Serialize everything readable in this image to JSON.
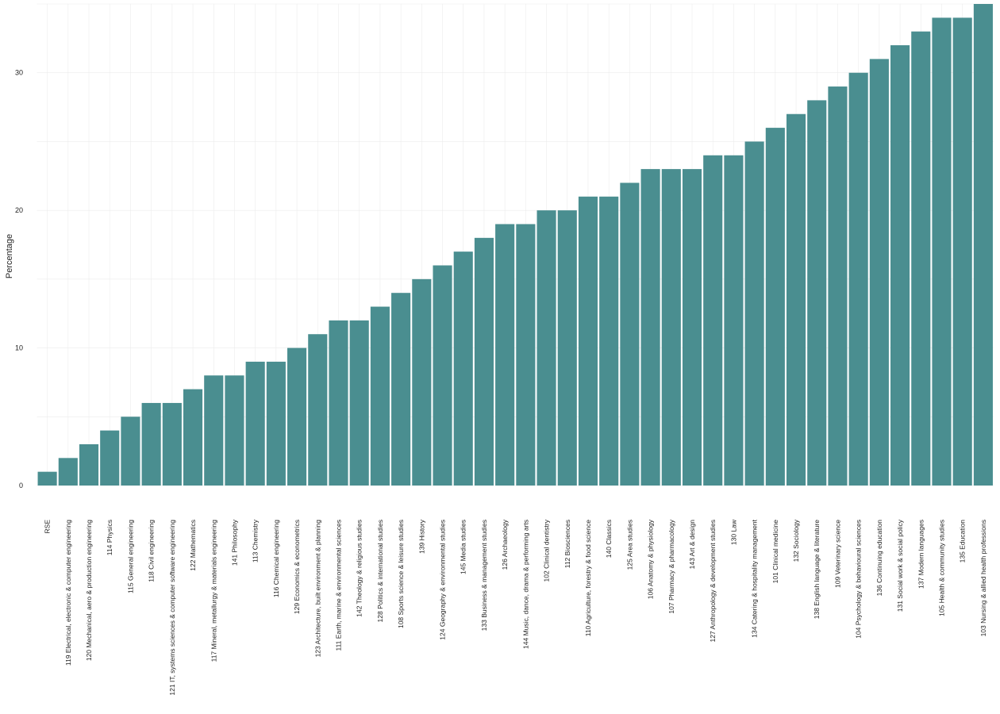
{
  "chart_data": {
    "type": "bar",
    "title": "",
    "xlabel": "",
    "ylabel": "Percentage",
    "ylim": [
      0,
      35
    ],
    "yticks": [
      0,
      10,
      20,
      30
    ],
    "grid": true,
    "legend": "none",
    "bar_color": "#4a8e90",
    "categories": [
      "RSE",
      "119 Electrical, electronic & computer engineering",
      "120 Mechanical, aero & production engineering",
      "114 Physics",
      "115 General engineering",
      "118 Civil engineering",
      "121 IT, systems sciences & computer software engineering",
      "122 Mathematics",
      "117 Mineral, metallurgy & materials engineering",
      "141 Philosophy",
      "113 Chemistry",
      "116 Chemical engineering",
      "129 Economics & econometrics",
      "123 Architecture, built environment & planning",
      "111 Earth, marine & environmental sciences",
      "142 Theology & religious studies",
      "128 Politics & international studies",
      "108 Sports science & leisure studies",
      "139 History",
      "124 Geography & environmental studies",
      "145 Media studies",
      "133 Business & management studies",
      "126 Archaeology",
      "144 Music, dance, drama & performing arts",
      "102 Clinical dentistry",
      "112 Biosciences",
      "110 Agriculture, forestry & food science",
      "140 Classics",
      "125 Area studies",
      "106 Anatomy & physiology",
      "107 Pharmacy & pharmacology",
      "143 Art & design",
      "127 Anthropology & development studies",
      "130 Law",
      "134 Catering & hospitality management",
      "101 Clinical medicine",
      "132 Sociology",
      "138 English language & literature",
      "109 Veterinary science",
      "104 Psychology & behavioural sciences",
      "136 Continuing education",
      "131 Social work & social policy",
      "137 Modern languages",
      "105 Health & community studies",
      "135 Education",
      "103 Nursing & allied health professions"
    ],
    "values": [
      1,
      2,
      3,
      4,
      5,
      6,
      6,
      7,
      8,
      8,
      9,
      9,
      10,
      11,
      12,
      12,
      13,
      14,
      15,
      16,
      17,
      18,
      19,
      19,
      20,
      20,
      21,
      21,
      22,
      23,
      23,
      23,
      24,
      24,
      25,
      26,
      27,
      28,
      29,
      30,
      31,
      32,
      33,
      34,
      34,
      35
    ]
  }
}
